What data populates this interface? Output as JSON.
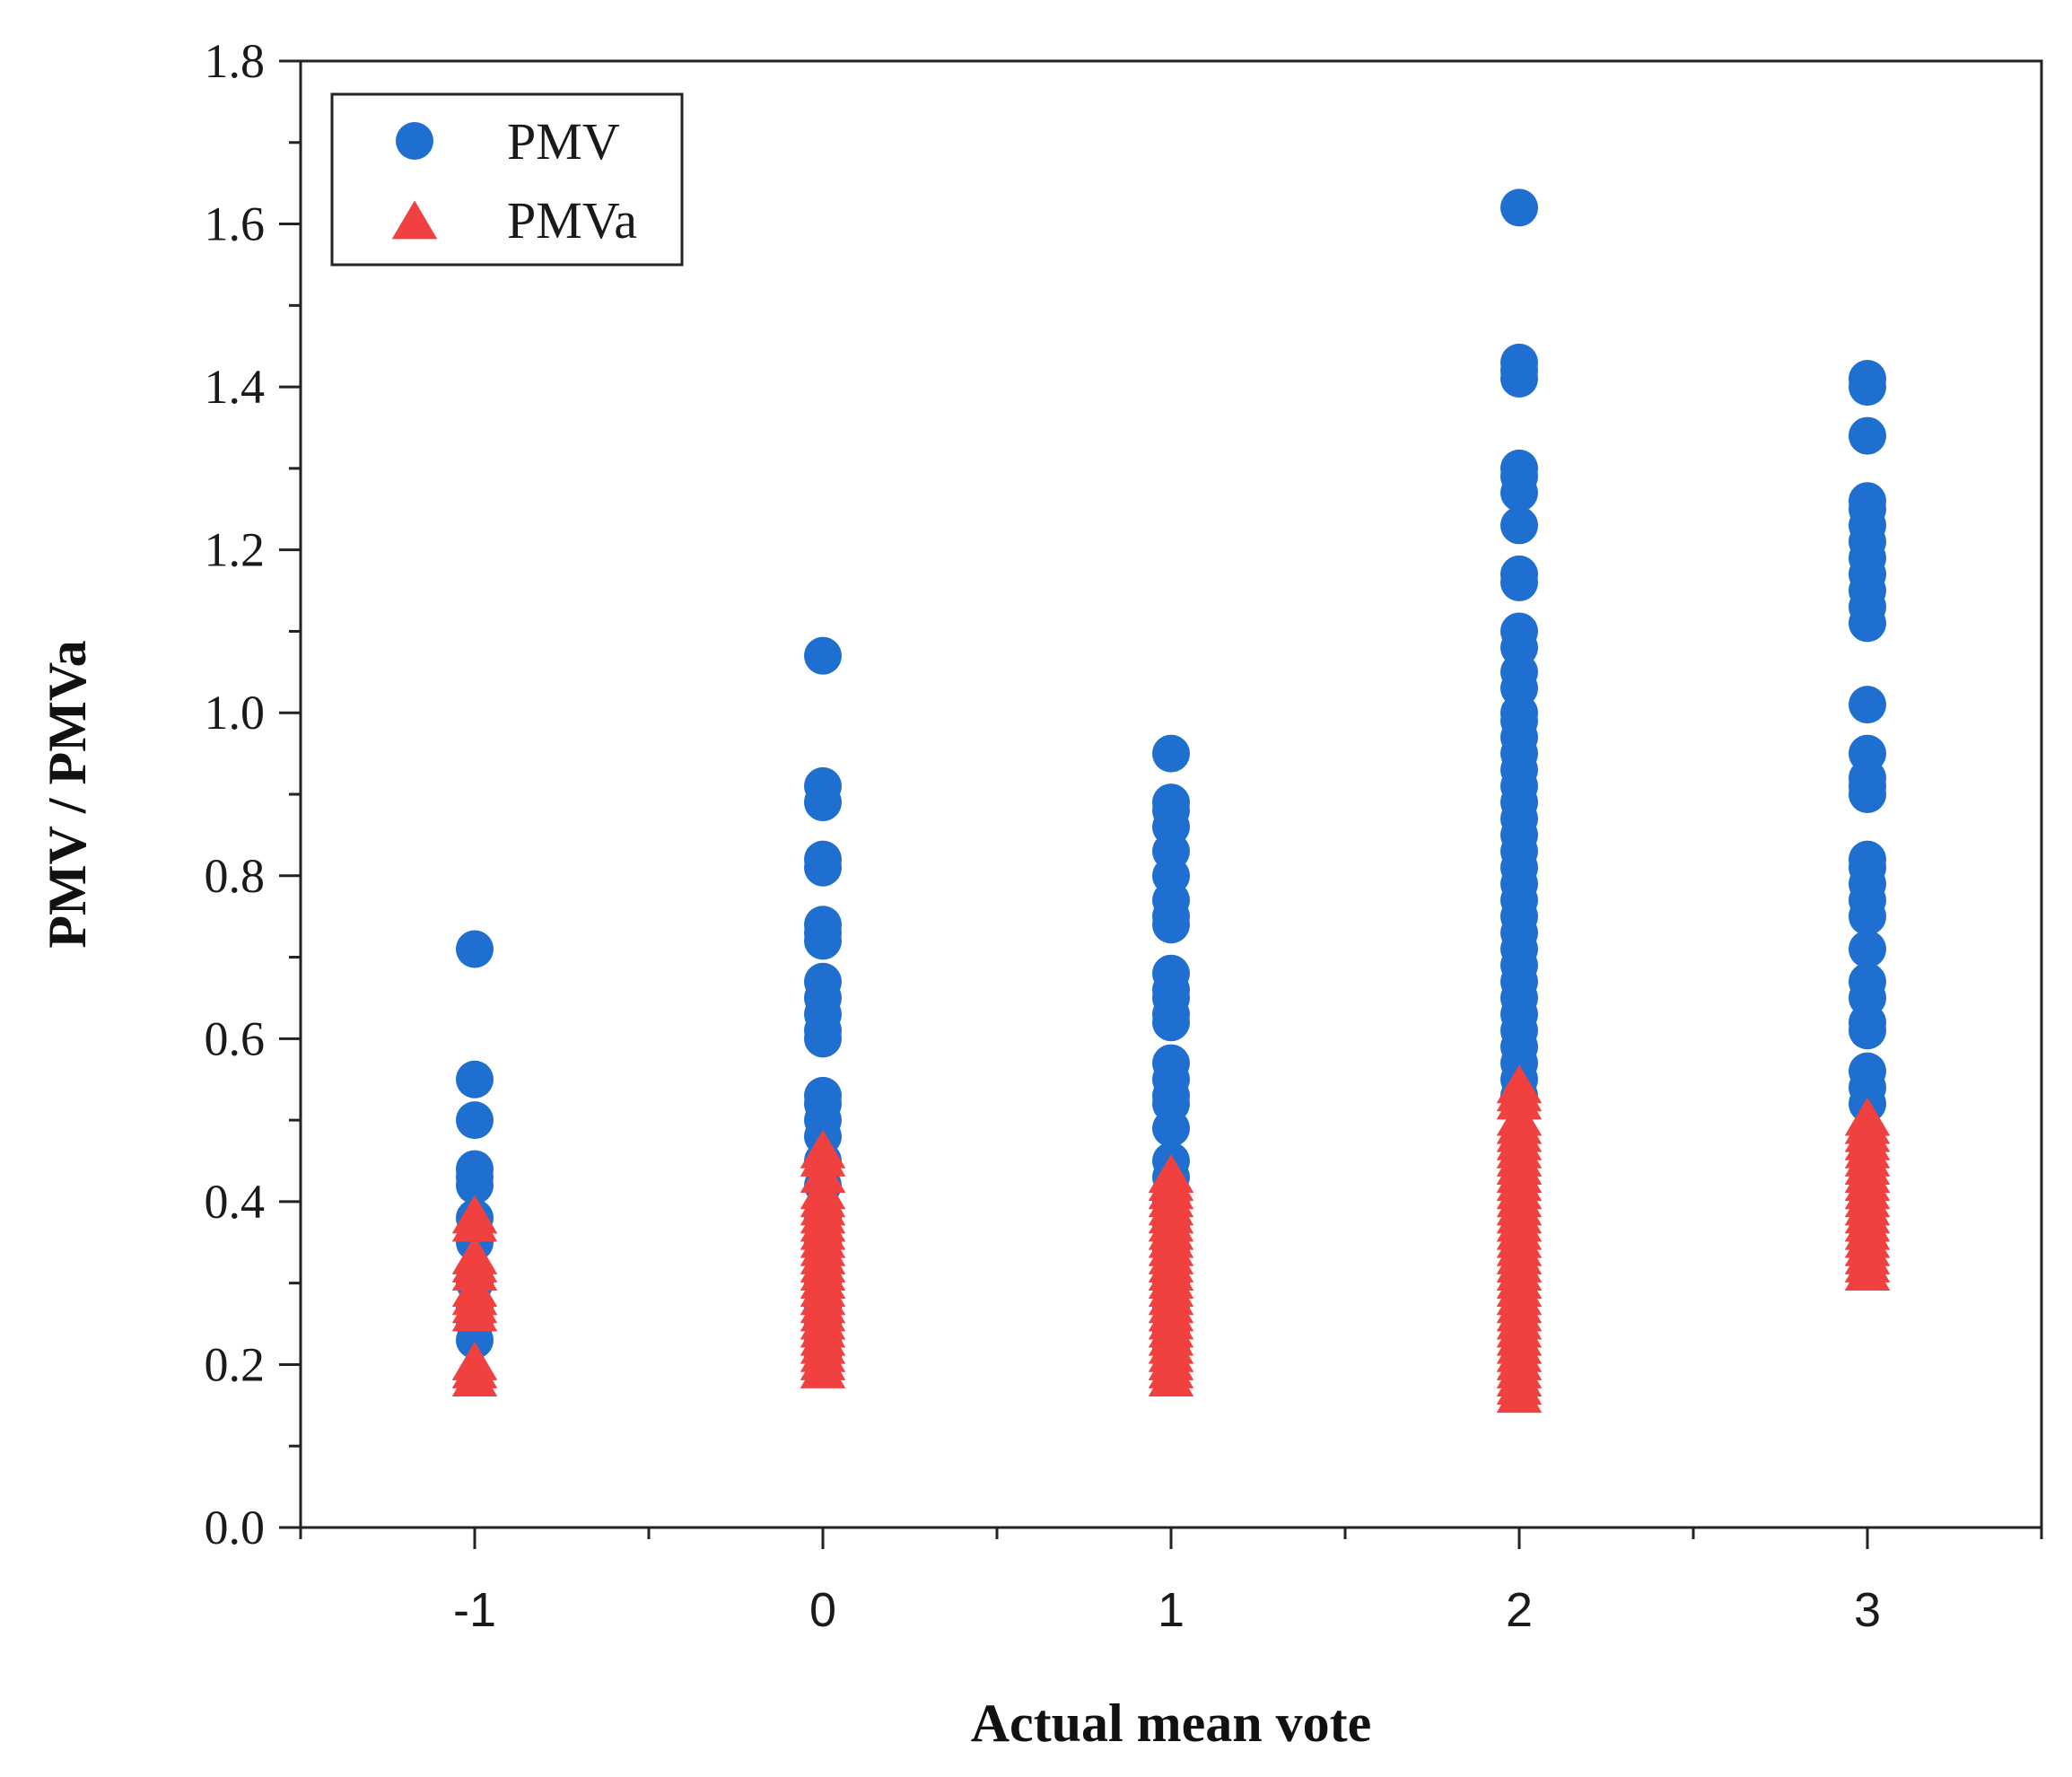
{
  "chart_data": {
    "type": "scatter",
    "title": "",
    "xlabel": "Actual mean vote",
    "ylabel": "PMV / PMVa",
    "xlim": [
      -1.5,
      3.5
    ],
    "ylim": [
      0.0,
      1.8
    ],
    "x_ticks": [
      -1,
      0,
      1,
      2,
      3
    ],
    "x_tick_labels": [
      "-1",
      "0",
      "1",
      "2",
      "3"
    ],
    "y_ticks": [
      0.0,
      0.2,
      0.4,
      0.6,
      0.8,
      1.0,
      1.2,
      1.4,
      1.6,
      1.8
    ],
    "y_tick_labels": [
      "0.0",
      "0.2",
      "0.4",
      "0.6",
      "0.8",
      "1.0",
      "1.2",
      "1.4",
      "1.6",
      "1.8"
    ],
    "grid": false,
    "legend": {
      "position": "top-left"
    },
    "series": [
      {
        "name": "PMV",
        "marker": "circle",
        "color": "#1f6fd1",
        "points": [
          {
            "x": -1,
            "y": [
              0.71,
              0.55,
              0.5,
              0.44,
              0.43,
              0.42,
              0.38,
              0.35,
              0.3,
              0.27,
              0.25,
              0.23
            ]
          },
          {
            "x": 0,
            "y": [
              1.07,
              0.91,
              0.89,
              0.82,
              0.81,
              0.74,
              0.73,
              0.72,
              0.67,
              0.65,
              0.63,
              0.61,
              0.6,
              0.53,
              0.52,
              0.5,
              0.48,
              0.45,
              0.42,
              0.38,
              0.35,
              0.3,
              0.27,
              0.25,
              0.23,
              0.21
            ]
          },
          {
            "x": 1,
            "y": [
              0.95,
              0.89,
              0.88,
              0.86,
              0.83,
              0.8,
              0.77,
              0.75,
              0.74,
              0.68,
              0.66,
              0.65,
              0.63,
              0.62,
              0.57,
              0.55,
              0.53,
              0.52,
              0.49,
              0.45,
              0.43,
              0.4,
              0.37,
              0.34,
              0.3,
              0.27,
              0.24,
              0.22
            ]
          },
          {
            "x": 2,
            "y": [
              1.62,
              1.43,
              1.42,
              1.41,
              1.3,
              1.29,
              1.27,
              1.23,
              1.17,
              1.16,
              1.1,
              1.08,
              1.05,
              1.03,
              1.0,
              0.99,
              0.97,
              0.95,
              0.93,
              0.91,
              0.89,
              0.87,
              0.85,
              0.83,
              0.81,
              0.79,
              0.77,
              0.75,
              0.73,
              0.71,
              0.69,
              0.67,
              0.65,
              0.63,
              0.61,
              0.59,
              0.57,
              0.55,
              0.53
            ]
          },
          {
            "x": 3,
            "y": [
              1.41,
              1.4,
              1.34,
              1.26,
              1.25,
              1.23,
              1.21,
              1.19,
              1.17,
              1.15,
              1.13,
              1.11,
              1.01,
              0.95,
              0.92,
              0.91,
              0.9,
              0.82,
              0.81,
              0.79,
              0.77,
              0.75,
              0.71,
              0.67,
              0.65,
              0.62,
              0.61,
              0.56,
              0.54,
              0.52
            ]
          }
        ]
      },
      {
        "name": "PMVa",
        "marker": "triangle",
        "color": "#f04040",
        "points": [
          {
            "x": -1,
            "y": [
              0.38,
              0.37,
              0.33,
              0.32,
              0.31,
              0.29,
              0.28,
              0.27,
              0.26,
              0.2,
              0.19,
              0.18
            ]
          },
          {
            "x": 0,
            "y": [
              0.46,
              0.45,
              0.43,
              0.41,
              0.4,
              0.39,
              0.38,
              0.37,
              0.36,
              0.35,
              0.34,
              0.33,
              0.32,
              0.31,
              0.3,
              0.29,
              0.28,
              0.27,
              0.26,
              0.25,
              0.24,
              0.23,
              0.22,
              0.21,
              0.2,
              0.19
            ]
          },
          {
            "x": 1,
            "y": [
              0.43,
              0.42,
              0.41,
              0.4,
              0.39,
              0.38,
              0.37,
              0.36,
              0.35,
              0.34,
              0.33,
              0.32,
              0.31,
              0.3,
              0.29,
              0.28,
              0.27,
              0.26,
              0.25,
              0.24,
              0.23,
              0.22,
              0.21,
              0.2,
              0.19,
              0.18
            ]
          },
          {
            "x": 2,
            "y": [
              0.54,
              0.53,
              0.52,
              0.5,
              0.49,
              0.48,
              0.47,
              0.46,
              0.45,
              0.44,
              0.43,
              0.42,
              0.41,
              0.4,
              0.39,
              0.38,
              0.37,
              0.36,
              0.35,
              0.34,
              0.33,
              0.32,
              0.31,
              0.3,
              0.29,
              0.28,
              0.27,
              0.26,
              0.25,
              0.24,
              0.23,
              0.22,
              0.21,
              0.2,
              0.19,
              0.18,
              0.17,
              0.16
            ]
          },
          {
            "x": 3,
            "y": [
              0.5,
              0.49,
              0.48,
              0.47,
              0.46,
              0.45,
              0.44,
              0.43,
              0.42,
              0.41,
              0.4,
              0.39,
              0.38,
              0.37,
              0.36,
              0.35,
              0.34,
              0.33,
              0.32,
              0.31
            ]
          }
        ]
      }
    ]
  }
}
